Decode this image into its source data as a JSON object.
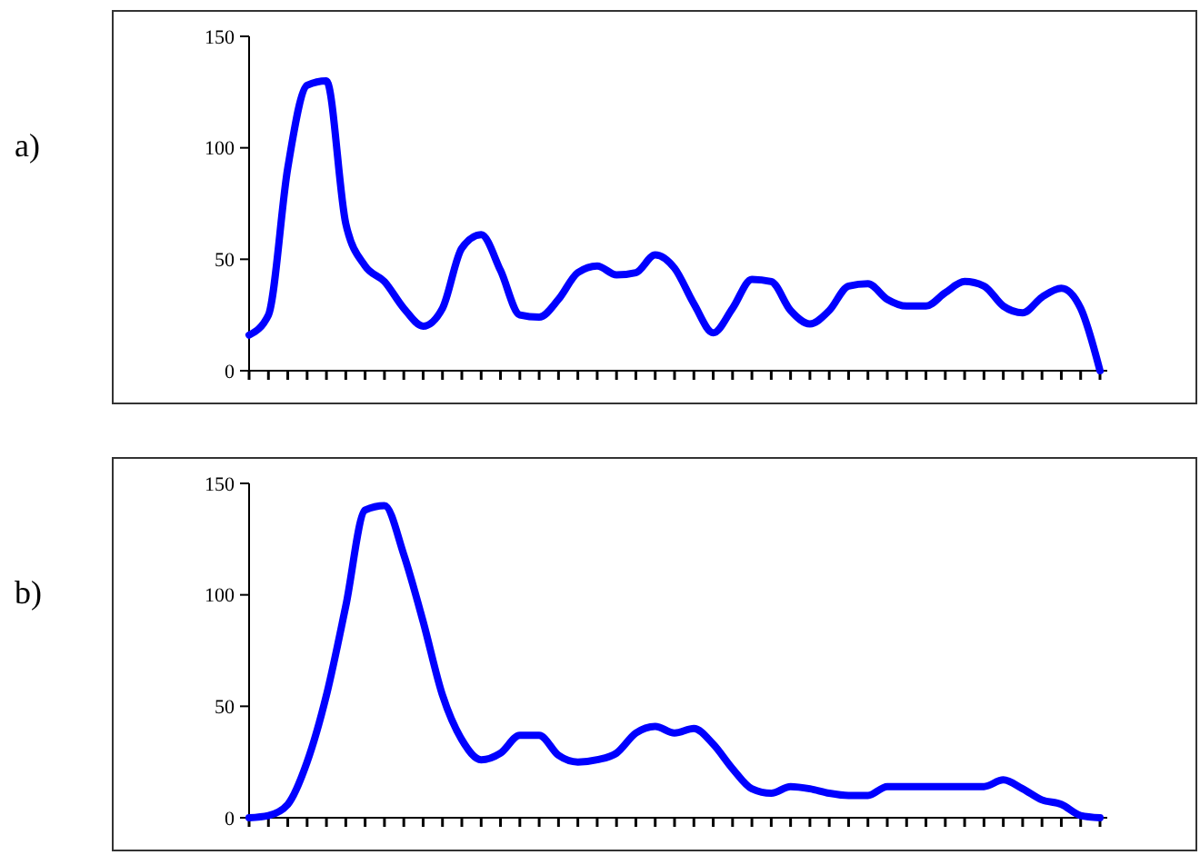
{
  "chart_data": [
    {
      "type": "line",
      "title": "a)",
      "categories": [
        null,
        null,
        null,
        null,
        null,
        null,
        null,
        null,
        null,
        null,
        null,
        null,
        null,
        null,
        null,
        null,
        null,
        null,
        null,
        null,
        null,
        null,
        null,
        null,
        null,
        null,
        null,
        null,
        null,
        null,
        null,
        null,
        null,
        null,
        null,
        null,
        null,
        null,
        null,
        null,
        null,
        null,
        null,
        null,
        null
      ],
      "series": [
        {
          "color": "#0000ff",
          "values": [
            16,
            25,
            91,
            128,
            130,
            66,
            47,
            40,
            28,
            20,
            28,
            55,
            61,
            45,
            25,
            24,
            32,
            44,
            47,
            43,
            44,
            52,
            46,
            30,
            17,
            28,
            41,
            40,
            27,
            21,
            27,
            38,
            39,
            32,
            29,
            29,
            35,
            40,
            38,
            29,
            26,
            33,
            37,
            28,
            0
          ]
        }
      ],
      "ylim": [
        0,
        150
      ],
      "yticks": [
        0,
        50,
        100,
        150
      ],
      "grid": false,
      "tick_labels": "y"
    },
    {
      "type": "line",
      "title": "b)",
      "categories": [
        null,
        null,
        null,
        null,
        null,
        null,
        null,
        null,
        null,
        null,
        null,
        null,
        null,
        null,
        null,
        null,
        null,
        null,
        null,
        null,
        null,
        null,
        null,
        null,
        null,
        null,
        null,
        null,
        null,
        null,
        null,
        null,
        null,
        null,
        null,
        null,
        null,
        null,
        null,
        null,
        null,
        null,
        null,
        null,
        null
      ],
      "series": [
        {
          "color": "#0000ff",
          "values": [
            0,
            1,
            6,
            25,
            55,
            95,
            138,
            140,
            118,
            88,
            55,
            35,
            26,
            29,
            37,
            37,
            28,
            25,
            26,
            29,
            38,
            41,
            38,
            40,
            33,
            22,
            13,
            11,
            14,
            13,
            11,
            10,
            10,
            14,
            14,
            14,
            14,
            14,
            14,
            17,
            13,
            8,
            6,
            1,
            0
          ]
        }
      ],
      "ylim": [
        0,
        150
      ],
      "yticks": [
        0,
        50,
        100,
        150
      ],
      "grid": false,
      "tick_labels": "y"
    }
  ]
}
